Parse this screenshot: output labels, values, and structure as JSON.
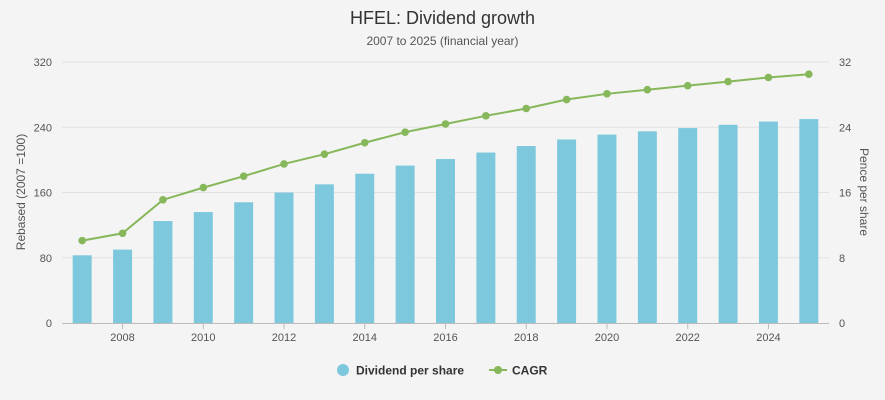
{
  "chart_data": {
    "type": "bar",
    "title": "HFEL: Dividend growth",
    "subtitle": "2007 to 2025 (financial year)",
    "x": [
      2007,
      2008,
      2009,
      2010,
      2011,
      2012,
      2013,
      2014,
      2015,
      2016,
      2017,
      2018,
      2019,
      2020,
      2021,
      2022,
      2023,
      2024,
      2025
    ],
    "x_tick_labels": [
      "2008",
      "2010",
      "2012",
      "2014",
      "2016",
      "2018",
      "2020",
      "2022",
      "2024"
    ],
    "y_left": {
      "label": "Rebased (2007 =100)",
      "ticks": [
        "0",
        "80",
        "160",
        "240",
        "320"
      ],
      "range": [
        0,
        320
      ]
    },
    "y_right": {
      "label": "Pence per share",
      "ticks": [
        "0",
        "8",
        "16",
        "24",
        "32"
      ],
      "range": [
        0,
        32
      ]
    },
    "grid": true,
    "legend_position": "bottom-center",
    "series": [
      {
        "name": "Dividend per share",
        "type": "bar",
        "axis": "left",
        "color": "#7ec8dd",
        "values": [
          83,
          90,
          125,
          136,
          148,
          160,
          170,
          183,
          193,
          201,
          209,
          217,
          225,
          231,
          235,
          239,
          243,
          247,
          250
        ]
      },
      {
        "name": "CAGR",
        "type": "line",
        "axis": "left",
        "color": "#86b75a",
        "values": [
          101,
          110,
          151,
          166,
          180,
          195,
          207,
          221,
          234,
          244,
          254,
          263,
          274,
          281,
          286,
          291,
          296,
          301,
          305
        ]
      }
    ]
  }
}
